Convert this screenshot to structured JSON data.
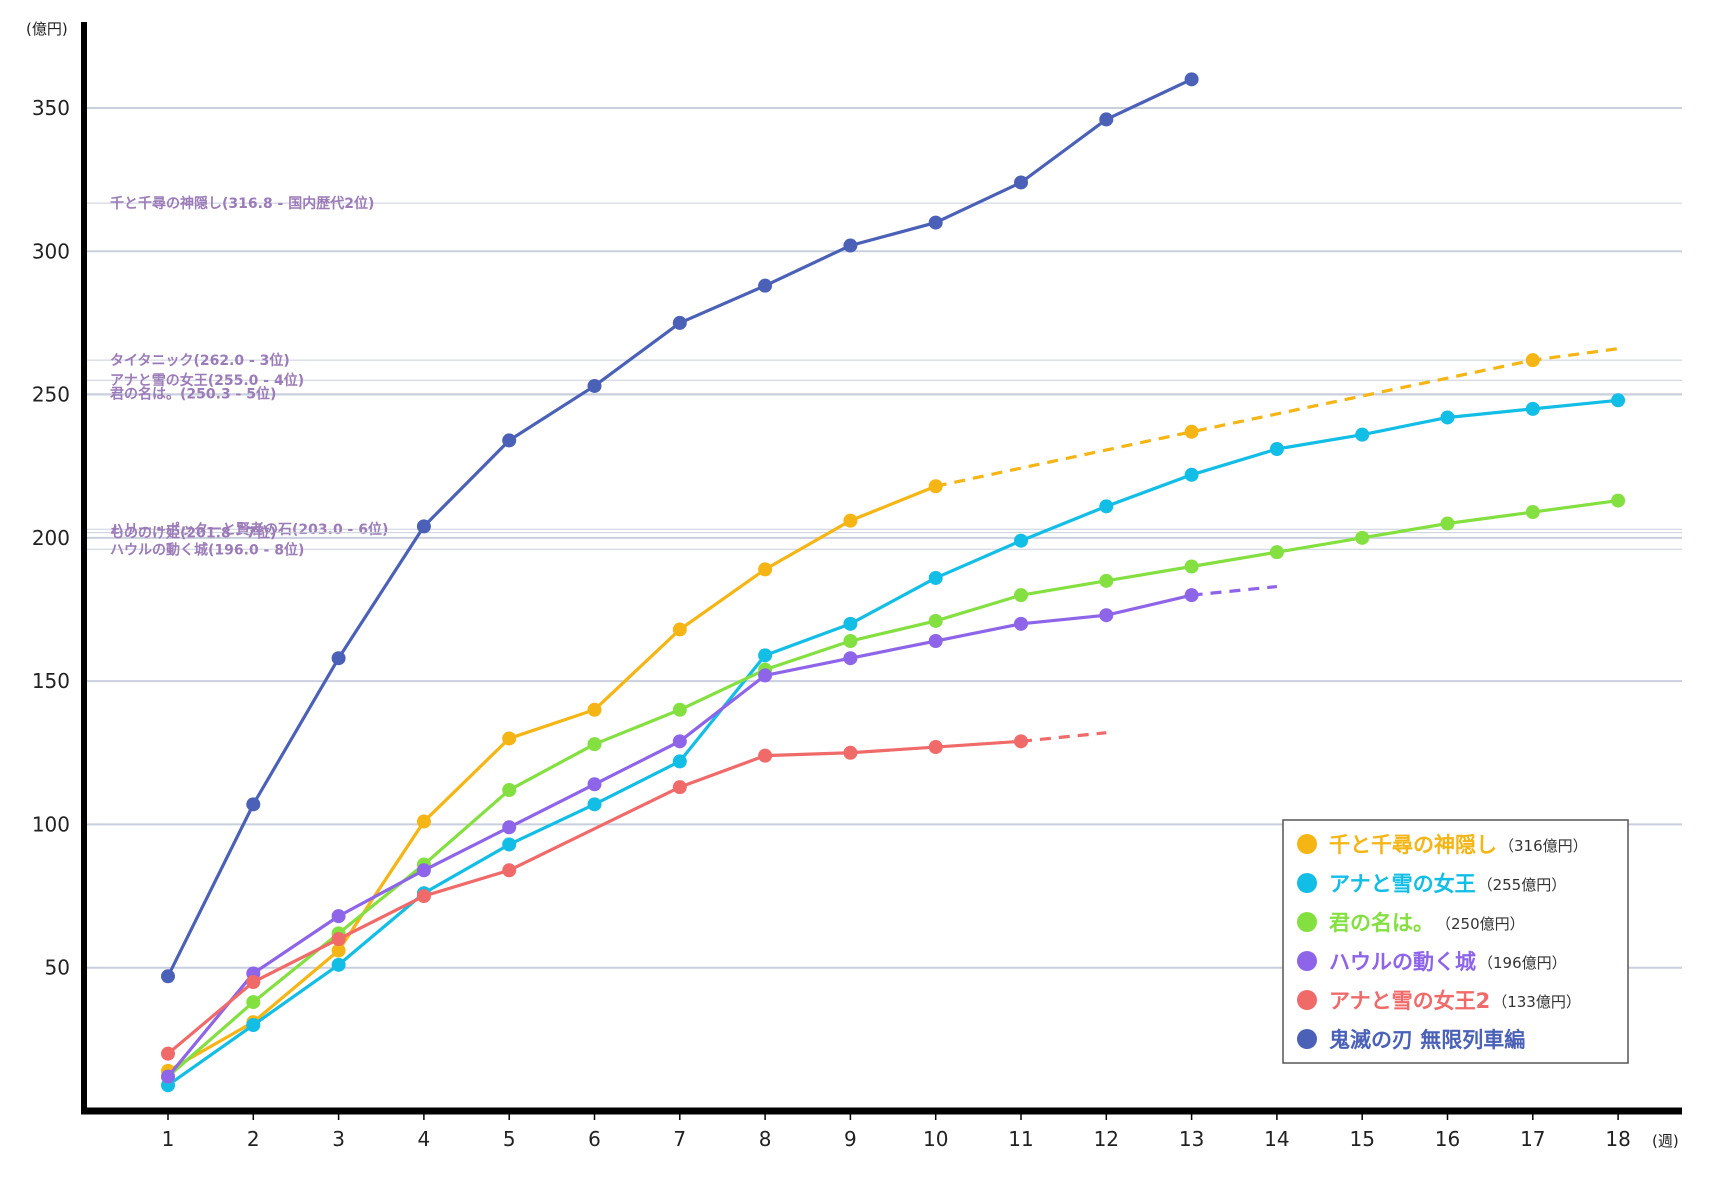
{
  "chart_data": {
    "type": "line",
    "y_unit": "(億円)",
    "x_unit": "(週)",
    "x": [
      1,
      2,
      3,
      4,
      5,
      6,
      7,
      8,
      9,
      10,
      11,
      12,
      13,
      14,
      15,
      16,
      17,
      18
    ],
    "xlim": [
      0,
      18.75
    ],
    "ylim": [
      0,
      380
    ],
    "y_ticks": [
      50,
      100,
      150,
      200,
      250,
      300,
      350
    ],
    "grid": true,
    "legend_position": "bottom-right",
    "reference_lines": [
      {
        "label": "千と千尋の神隠し(316.8 - 国内歴代2位)",
        "value": 316.8
      },
      {
        "label": "タイタニック(262.0 - 3位)",
        "value": 262.0
      },
      {
        "label": "アナと雪の女王(255.0 - 4位)",
        "value": 255.0
      },
      {
        "label": "君の名は。(250.3 - 5位)",
        "value": 250.3
      },
      {
        "label": "ハリー・ポッターと賢者の石(203.0 - 6位)",
        "value": 203.0
      },
      {
        "label": "もののけ姫(201.8 - 7位)",
        "value": 201.8
      },
      {
        "label": "ハウルの動く城(196.0 - 8位)",
        "value": 196.0
      }
    ],
    "series": [
      {
        "name": "千と千尋の神隠し",
        "note": "（316億円）",
        "color": "#f5b514",
        "values": [
          14,
          31,
          56,
          101,
          130,
          140,
          168,
          189,
          206,
          218,
          null,
          null,
          237,
          null,
          null,
          null,
          262,
          null
        ],
        "solid_until": 10,
        "dashed_end": [
          18,
          266
        ]
      },
      {
        "name": "アナと雪の女王",
        "note": "（255億円）",
        "color": "#12bde6",
        "values": [
          9,
          30,
          51,
          76,
          93,
          107,
          122,
          159,
          170,
          186,
          199,
          211,
          222,
          231,
          236,
          242,
          245,
          248
        ],
        "solid_until": 18,
        "dashed_end": null
      },
      {
        "name": "君の名は。",
        "note": "（250億円）",
        "color": "#84e040",
        "values": [
          12,
          38,
          62,
          86,
          112,
          128,
          140,
          154,
          164,
          171,
          180,
          185,
          190,
          195,
          200,
          205,
          209,
          213
        ],
        "solid_until": 18,
        "dashed_end": null
      },
      {
        "name": "ハウルの動く城",
        "note": "（196億円）",
        "color": "#8e64e8",
        "values": [
          12,
          48,
          68,
          84,
          99,
          114,
          129,
          152,
          158,
          164,
          170,
          173,
          180,
          null,
          null,
          null,
          null,
          null
        ],
        "solid_until": 13,
        "dashed_end": [
          14,
          183
        ]
      },
      {
        "name": "アナと雪の女王2",
        "note": "（133億円）",
        "color": "#f06a6a",
        "values": [
          20,
          45,
          60,
          75,
          84,
          null,
          113,
          124,
          125,
          127,
          129,
          null,
          null,
          null,
          null,
          null,
          null,
          null
        ],
        "solid_until": 11,
        "dashed_end": [
          12,
          132
        ]
      },
      {
        "name": "鬼滅の刃 無限列車編",
        "note": "",
        "color": "#4a61b7",
        "values": [
          47,
          107,
          158,
          204,
          234,
          253,
          275,
          288,
          302,
          310,
          324,
          346,
          360,
          null,
          null,
          null,
          null,
          null
        ],
        "solid_until": 13,
        "dashed_end": null
      }
    ]
  }
}
